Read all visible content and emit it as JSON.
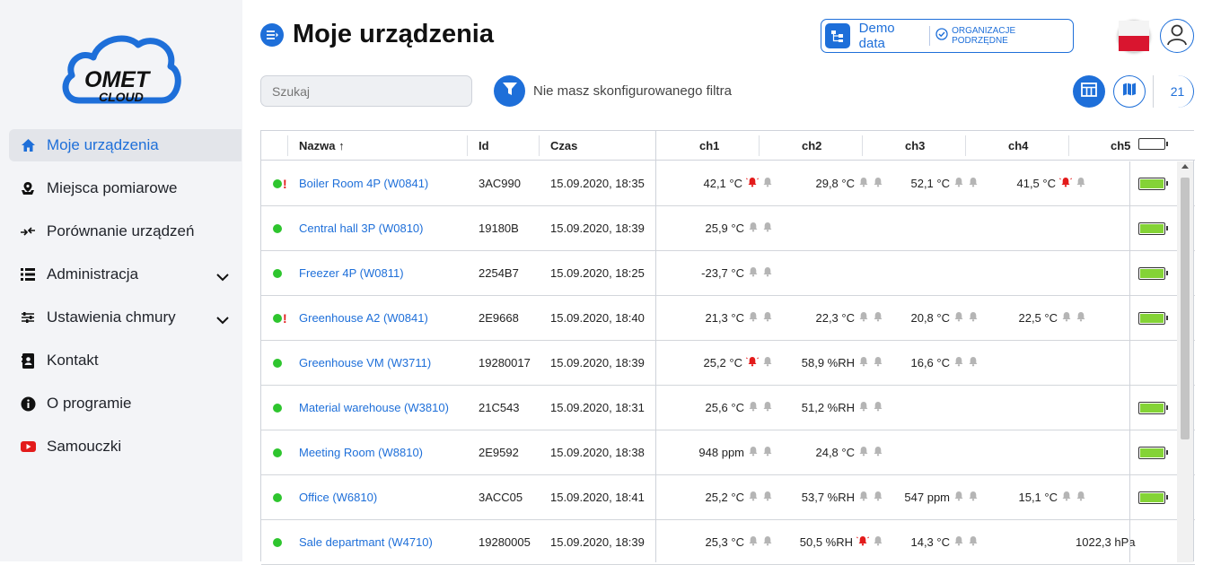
{
  "sidebar": {
    "logo_text_top": "OMET",
    "logo_text_bottom": "CLOUD",
    "items": [
      {
        "label": "Moje urządzenia",
        "icon": "home-icon",
        "active": true
      },
      {
        "label": "Miejsca pomiarowe",
        "icon": "location-icon"
      },
      {
        "label": "Porównanie urządzeń",
        "icon": "compare-icon"
      },
      {
        "label": "Administracja",
        "icon": "list-icon",
        "expandable": true
      },
      {
        "label": "Ustawienia chmury",
        "icon": "sliders-icon",
        "expandable": true
      },
      {
        "label": "Kontakt",
        "icon": "contact-icon"
      },
      {
        "label": "O programie",
        "icon": "info-icon"
      },
      {
        "label": "Samouczki",
        "icon": "youtube-icon"
      }
    ]
  },
  "header": {
    "title": "Moje urządzenia",
    "demo_label": "Demo data",
    "org_label": "ORGANIZACJE PODRZĘDNE"
  },
  "toolbar": {
    "search_placeholder": "Szukaj",
    "filter_text": "Nie masz skonfigurowanego filtra",
    "device_count": "21"
  },
  "colors": {
    "accent": "#1e6fd9",
    "ok": "#2ec52e",
    "alarm": "#e31b1b",
    "battery": "#84d336"
  },
  "table": {
    "columns": {
      "name": "Nazwa ↑",
      "id": "Id",
      "time": "Czas",
      "ch1": "ch1",
      "ch2": "ch2",
      "ch3": "ch3",
      "ch4": "ch4",
      "ch5": "ch5"
    },
    "rows": [
      {
        "warn": true,
        "name": "Boiler Room 4P (W0841)",
        "id": "3AC990",
        "time": "15.09.2020, 18:35",
        "ch": [
          {
            "v": "42,1 °C",
            "a": true
          },
          {
            "v": "29,8 °C",
            "a": false
          },
          {
            "v": "52,1 °C",
            "a": false
          },
          {
            "v": "41,5 °C",
            "a": true
          }
        ],
        "ch5": "",
        "battery": 1.0
      },
      {
        "warn": false,
        "name": "Central hall 3P (W0810)",
        "id": "19180B",
        "time": "15.09.2020, 18:39",
        "ch": [
          {
            "v": "25,9 °C",
            "a": false
          }
        ],
        "ch5": "",
        "battery": 1.0
      },
      {
        "warn": false,
        "name": "Freezer 4P (W0811)",
        "id": "2254B7",
        "time": "15.09.2020, 18:25",
        "ch": [
          {
            "v": "-23,7 °C",
            "a": false
          }
        ],
        "ch5": "",
        "battery": 1.0
      },
      {
        "warn": true,
        "name": "Greenhouse A2 (W0841)",
        "id": "2E9668",
        "time": "15.09.2020, 18:40",
        "ch": [
          {
            "v": "21,3 °C",
            "a": false
          },
          {
            "v": "22,3 °C",
            "a": false
          },
          {
            "v": "20,8 °C",
            "a": false
          },
          {
            "v": "22,5 °C",
            "a": false
          }
        ],
        "ch5": "",
        "battery": 1.0
      },
      {
        "warn": false,
        "name": "Greenhouse VM (W3711)",
        "id": "19280017",
        "time": "15.09.2020, 18:39",
        "ch": [
          {
            "v": "25,2 °C",
            "a": true
          },
          {
            "v": "58,9 %RH",
            "a": false
          },
          {
            "v": "16,6 °C",
            "a": false
          }
        ],
        "ch5": "",
        "battery": null
      },
      {
        "warn": false,
        "name": "Material warehouse (W3810)",
        "id": "21C543",
        "time": "15.09.2020, 18:31",
        "ch": [
          {
            "v": "25,6 °C",
            "a": false
          },
          {
            "v": "51,2 %RH",
            "a": false
          }
        ],
        "ch5": "",
        "battery": 1.0
      },
      {
        "warn": false,
        "name": "Meeting Room (W8810)",
        "id": "2E9592",
        "time": "15.09.2020, 18:38",
        "ch": [
          {
            "v": "948 ppm",
            "a": false
          },
          {
            "v": "24,8 °C",
            "a": false
          }
        ],
        "ch5": "",
        "battery": 1.0
      },
      {
        "warn": false,
        "name": "Office (W6810)",
        "id": "3ACC05",
        "time": "15.09.2020, 18:41",
        "ch": [
          {
            "v": "25,2 °C",
            "a": false
          },
          {
            "v": "53,7 %RH",
            "a": false
          },
          {
            "v": "547 ppm",
            "a": false
          },
          {
            "v": "15,1 °C",
            "a": false
          }
        ],
        "ch5": "",
        "battery": 1.0
      },
      {
        "warn": false,
        "name": "Sale departmant (W4710)",
        "id": "19280005",
        "time": "15.09.2020, 18:39",
        "ch": [
          {
            "v": "25,3 °C",
            "a": false
          },
          {
            "v": "50,5 %RH",
            "a": true
          },
          {
            "v": "14,3 °C",
            "a": false
          }
        ],
        "ch5": "1022,3 hPa",
        "battery": null
      }
    ]
  }
}
